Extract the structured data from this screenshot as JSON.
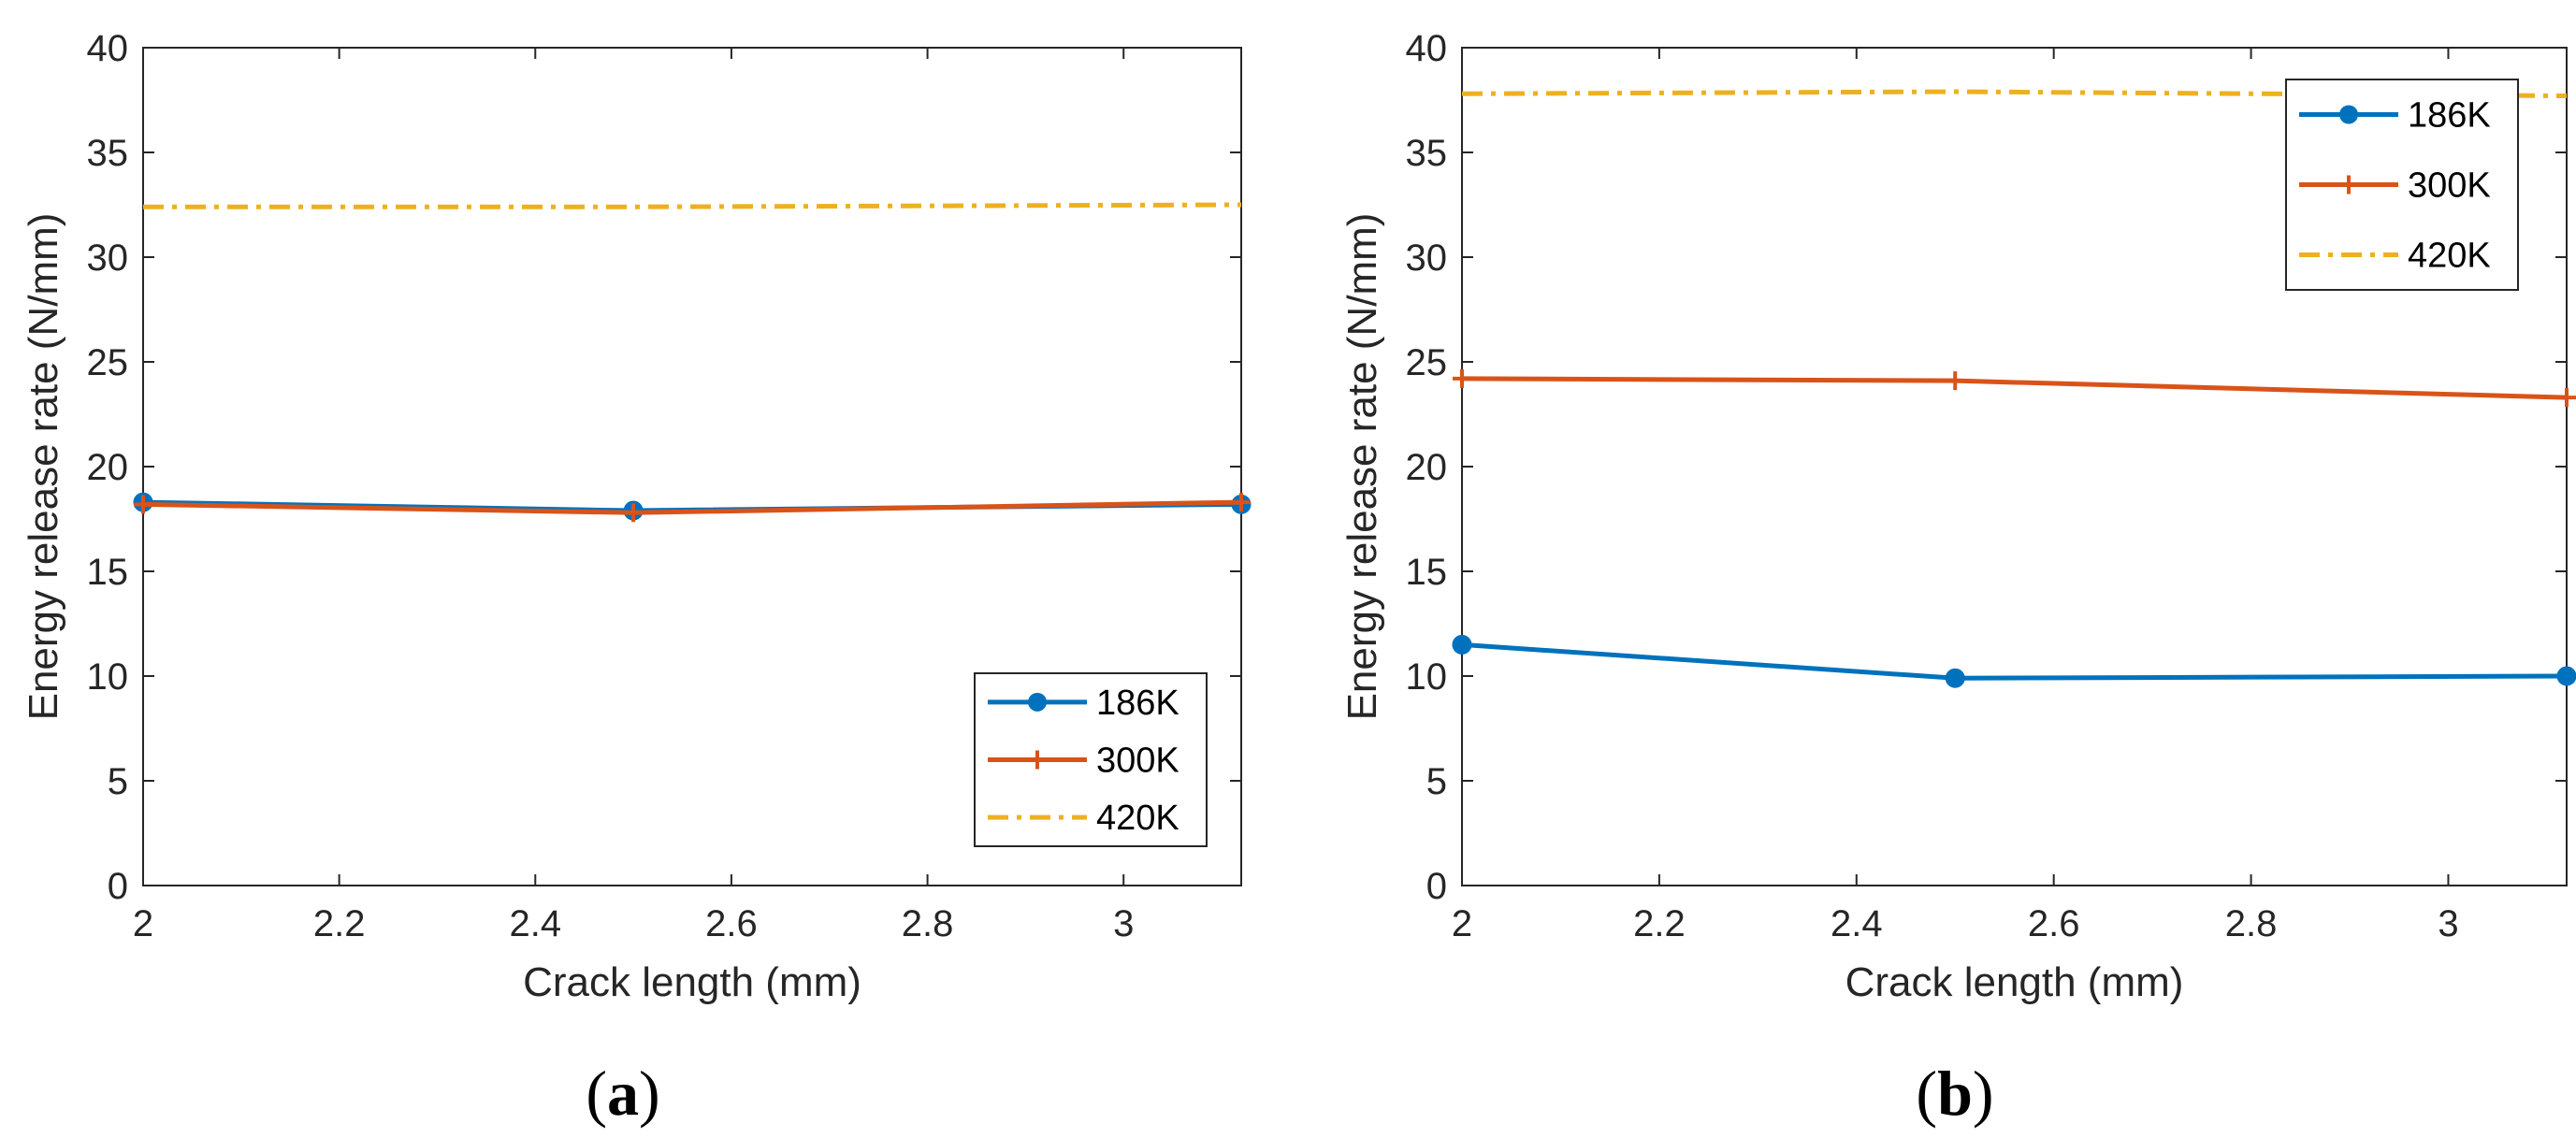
{
  "figure": {
    "panel_labels": [
      {
        "open": "(",
        "letter": "a",
        "close": ")"
      },
      {
        "open": "(",
        "letter": "b",
        "close": ")"
      }
    ]
  },
  "chart_data": [
    {
      "type": "line",
      "panel": "a",
      "title": "",
      "xlabel": "Crack length (mm)",
      "ylabel": "Energy release rate (N/mm)",
      "xlim": [
        2,
        3.12
      ],
      "ylim": [
        0,
        40
      ],
      "xticks": [
        2,
        2.2,
        2.4,
        2.6,
        2.8,
        3
      ],
      "xtick_labels": [
        "2",
        "2.2",
        "2.4",
        "2.6",
        "2.8",
        "3"
      ],
      "yticks": [
        0,
        5,
        10,
        15,
        20,
        25,
        30,
        35,
        40
      ],
      "ytick_labels": [
        "0",
        "5",
        "10",
        "15",
        "20",
        "25",
        "30",
        "35",
        "40"
      ],
      "grid": false,
      "legend_position": "bottom-right",
      "series": [
        {
          "name": "186K",
          "color": "#0072BD",
          "line": "solid",
          "marker": "circle",
          "x": [
            2,
            2.5,
            3.12
          ],
          "values": [
            18.3,
            17.9,
            18.2
          ]
        },
        {
          "name": "300K",
          "color": "#D95319",
          "line": "solid",
          "marker": "plus",
          "x": [
            2,
            2.5,
            3.12
          ],
          "values": [
            18.2,
            17.8,
            18.3
          ]
        },
        {
          "name": "420K",
          "color": "#EDB120",
          "line": "dashdot",
          "marker": "none",
          "x": [
            2,
            2.5,
            3.12
          ],
          "values": [
            32.4,
            32.4,
            32.5
          ]
        }
      ]
    },
    {
      "type": "line",
      "panel": "b",
      "title": "",
      "xlabel": "Crack length (mm)",
      "ylabel": "Energy release rate (N/mm)",
      "xlim": [
        2,
        3.12
      ],
      "ylim": [
        0,
        40
      ],
      "xticks": [
        2,
        2.2,
        2.4,
        2.6,
        2.8,
        3
      ],
      "xtick_labels": [
        "2",
        "2.2",
        "2.4",
        "2.6",
        "2.8",
        "3"
      ],
      "yticks": [
        0,
        5,
        10,
        15,
        20,
        25,
        30,
        35,
        40
      ],
      "ytick_labels": [
        "0",
        "5",
        "10",
        "15",
        "20",
        "25",
        "30",
        "35",
        "40"
      ],
      "grid": false,
      "legend_position": "top-right",
      "series": [
        {
          "name": "186K",
          "color": "#0072BD",
          "line": "solid",
          "marker": "circle",
          "x": [
            2,
            2.5,
            3.12
          ],
          "values": [
            11.5,
            9.9,
            10.0
          ]
        },
        {
          "name": "300K",
          "color": "#D95319",
          "line": "solid",
          "marker": "plus",
          "x": [
            2,
            2.5,
            3.12
          ],
          "values": [
            24.2,
            24.1,
            23.3
          ]
        },
        {
          "name": "420K",
          "color": "#EDB120",
          "line": "dashdot",
          "marker": "none",
          "x": [
            2,
            2.5,
            3.12
          ],
          "values": [
            37.8,
            37.9,
            37.7
          ]
        }
      ]
    }
  ]
}
